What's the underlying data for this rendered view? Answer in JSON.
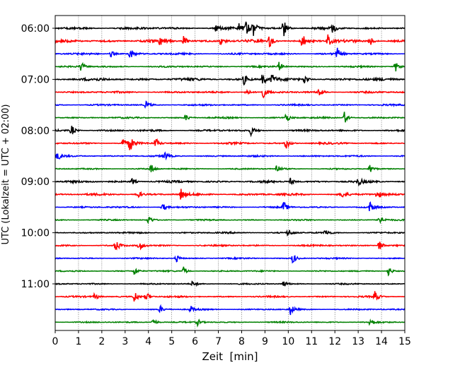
{
  "chart_data": {
    "type": "line",
    "title": "",
    "xlabel": "Zeit  [min]",
    "ylabel": "UTC (Lokalzeit = UTC + 02:00)",
    "xlim": [
      0,
      15
    ],
    "x_ticks": [
      0,
      1,
      2,
      3,
      4,
      5,
      6,
      7,
      8,
      9,
      10,
      11,
      12,
      13,
      14,
      15
    ],
    "x_tick_labels": [
      "0",
      "1",
      "2",
      "3",
      "4",
      "5",
      "6",
      "7",
      "8",
      "9",
      "10",
      "11",
      "12",
      "13",
      "14",
      "15"
    ],
    "x_grid": true,
    "y_tick_labels": [
      "06:00",
      "07:00",
      "08:00",
      "09:00",
      "10:00",
      "11:00"
    ],
    "trace_interval_min": 15,
    "trace_count": 24,
    "color_cycle": [
      "#000000",
      "#ff0000",
      "#0000ff",
      "#008000"
    ],
    "traces": [
      {
        "start": "06:00",
        "amp": 0.9,
        "events": [
          [
            8.2,
            2.2
          ],
          [
            8.5,
            2.6
          ],
          [
            9.8,
            3.5
          ],
          [
            7.9,
            1.6
          ],
          [
            11.9,
            1.4
          ],
          [
            6.9,
            1.2
          ]
        ]
      },
      {
        "start": "06:15",
        "amp": 1.0,
        "events": [
          [
            5.5,
            1.8
          ],
          [
            7.1,
            1.6
          ],
          [
            9.2,
            1.9
          ],
          [
            10.6,
            2.4
          ],
          [
            11.7,
            2.0
          ],
          [
            13.5,
            1.8
          ],
          [
            4.5,
            1.2
          ]
        ]
      },
      {
        "start": "06:30",
        "amp": 0.7,
        "events": [
          [
            3.2,
            2.0
          ],
          [
            12.1,
            1.8
          ],
          [
            2.4,
            1.2
          ]
        ]
      },
      {
        "start": "06:45",
        "amp": 0.6,
        "events": [
          [
            1.1,
            1.6
          ],
          [
            9.6,
            1.5
          ],
          [
            14.6,
            1.8
          ]
        ]
      },
      {
        "start": "07:00",
        "amp": 1.0,
        "events": [
          [
            8.9,
            2.0
          ],
          [
            9.3,
            1.8
          ],
          [
            10.7,
            1.5
          ],
          [
            8.1,
            1.6
          ]
        ]
      },
      {
        "start": "07:15",
        "amp": 0.7,
        "events": [
          [
            8.9,
            2.0
          ],
          [
            11.3,
            1.6
          ],
          [
            8.2,
            1.4
          ]
        ]
      },
      {
        "start": "07:30",
        "amp": 0.6,
        "events": [
          [
            3.9,
            1.2
          ]
        ]
      },
      {
        "start": "07:45",
        "amp": 0.6,
        "events": [
          [
            12.4,
            2.3
          ],
          [
            9.9,
            1.6
          ],
          [
            5.6,
            1.2
          ]
        ]
      },
      {
        "start": "08:00",
        "amp": 0.7,
        "events": [
          [
            0.7,
            1.8
          ],
          [
            8.4,
            1.4
          ]
        ]
      },
      {
        "start": "08:15",
        "amp": 0.7,
        "events": [
          [
            3.2,
            2.6
          ],
          [
            4.3,
            1.8
          ],
          [
            9.9,
            2.0
          ],
          [
            2.9,
            1.6
          ]
        ]
      },
      {
        "start": "08:30",
        "amp": 0.6,
        "events": [
          [
            0.1,
            1.4
          ],
          [
            4.7,
            1.2
          ]
        ]
      },
      {
        "start": "08:45",
        "amp": 0.5,
        "events": [
          [
            4.1,
            1.6
          ],
          [
            9.5,
            1.5
          ],
          [
            13.5,
            1.6
          ]
        ]
      },
      {
        "start": "09:00",
        "amp": 0.8,
        "events": [
          [
            10.1,
            1.2
          ],
          [
            13.0,
            1.3
          ],
          [
            3.3,
            1.1
          ]
        ]
      },
      {
        "start": "09:15",
        "amp": 0.8,
        "events": [
          [
            3.5,
            1.8
          ],
          [
            5.4,
            2.0
          ],
          [
            13.8,
            1.6
          ],
          [
            12.3,
            1.2
          ]
        ]
      },
      {
        "start": "09:30",
        "amp": 0.6,
        "events": [
          [
            9.8,
            1.8
          ],
          [
            13.5,
            1.7
          ],
          [
            4.6,
            1.4
          ]
        ]
      },
      {
        "start": "09:45",
        "amp": 0.5,
        "events": [
          [
            4.0,
            1.6
          ],
          [
            13.9,
            2.0
          ]
        ]
      },
      {
        "start": "10:00",
        "amp": 0.6,
        "events": [
          [
            10.0,
            1.3
          ],
          [
            11.6,
            1.2
          ]
        ]
      },
      {
        "start": "10:15",
        "amp": 0.6,
        "events": [
          [
            2.6,
            2.0
          ],
          [
            3.6,
            1.7
          ],
          [
            13.9,
            1.8
          ]
        ]
      },
      {
        "start": "10:30",
        "amp": 0.5,
        "events": [
          [
            10.2,
            1.8
          ],
          [
            5.2,
            1.2
          ]
        ]
      },
      {
        "start": "10:45",
        "amp": 0.5,
        "events": [
          [
            3.4,
            1.5
          ],
          [
            5.5,
            1.4
          ],
          [
            14.3,
            1.8
          ]
        ]
      },
      {
        "start": "11:00",
        "amp": 0.5,
        "events": [
          [
            9.8,
            1.2
          ],
          [
            5.9,
            1.1
          ]
        ]
      },
      {
        "start": "11:15",
        "amp": 0.6,
        "events": [
          [
            3.4,
            2.0
          ],
          [
            3.9,
            1.8
          ],
          [
            13.7,
            1.8
          ],
          [
            1.7,
            1.1
          ]
        ]
      },
      {
        "start": "11:30",
        "amp": 0.5,
        "events": [
          [
            10.1,
            1.8
          ],
          [
            4.5,
            1.2
          ],
          [
            5.8,
            1.2
          ]
        ]
      },
      {
        "start": "11:45",
        "amp": 0.5,
        "events": [
          [
            4.2,
            1.5
          ],
          [
            13.5,
            1.6
          ],
          [
            6.1,
            1.1
          ]
        ]
      }
    ]
  }
}
